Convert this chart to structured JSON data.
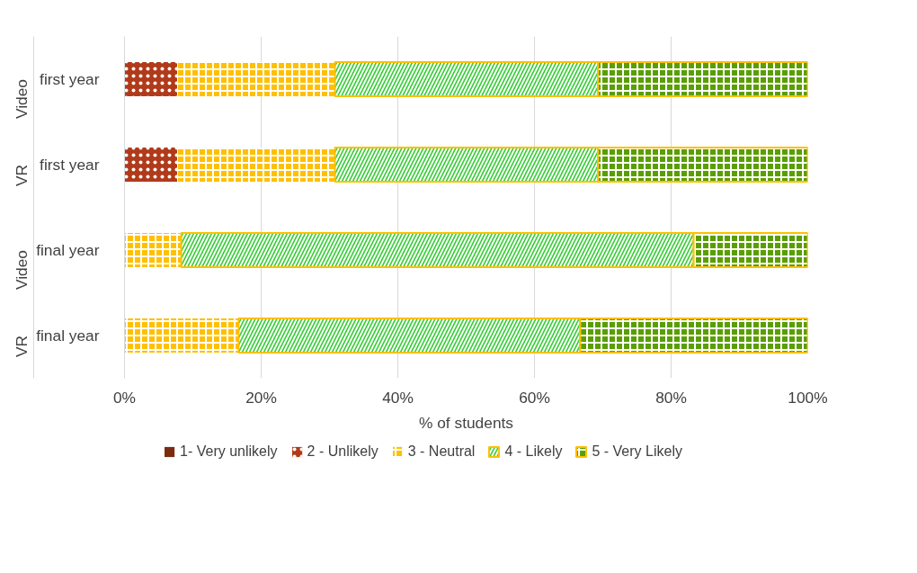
{
  "chart_data": {
    "type": "bar",
    "orientation": "horizontal",
    "stacked": true,
    "xlabel": "% of students",
    "categories": [
      "first year",
      "first year",
      "final year",
      "final year"
    ],
    "annotations": [
      "Video",
      "VR",
      "Video",
      "VR"
    ],
    "series": [
      {
        "name": "1- Very unlikely",
        "color": "#7b2c10",
        "values": [
          0,
          0,
          0,
          0
        ]
      },
      {
        "name": "2 - Unlikely",
        "color": "#b03a1a",
        "values": [
          7.7,
          7.7,
          0,
          0
        ]
      },
      {
        "name": "3 - Neutral",
        "color": "#ffc000",
        "values": [
          23.1,
          23.1,
          8.3,
          16.7
        ]
      },
      {
        "name": "4 - Likely",
        "color": "#33cc33",
        "values": [
          38.5,
          38.5,
          75,
          50
        ]
      },
      {
        "name": "5 - Very Likely",
        "color": "#5a9e00",
        "values": [
          30.8,
          30.8,
          16.7,
          33.3
        ]
      }
    ],
    "xlim": [
      0,
      100
    ],
    "xticks": [
      {
        "value": 0,
        "label": "0%"
      },
      {
        "value": 20,
        "label": "20%"
      },
      {
        "value": 40,
        "label": "40%"
      },
      {
        "value": 60,
        "label": "60%"
      },
      {
        "value": 80,
        "label": "80%"
      },
      {
        "value": 100,
        "label": "100%"
      }
    ],
    "grid": "x",
    "legend": "bottom"
  }
}
